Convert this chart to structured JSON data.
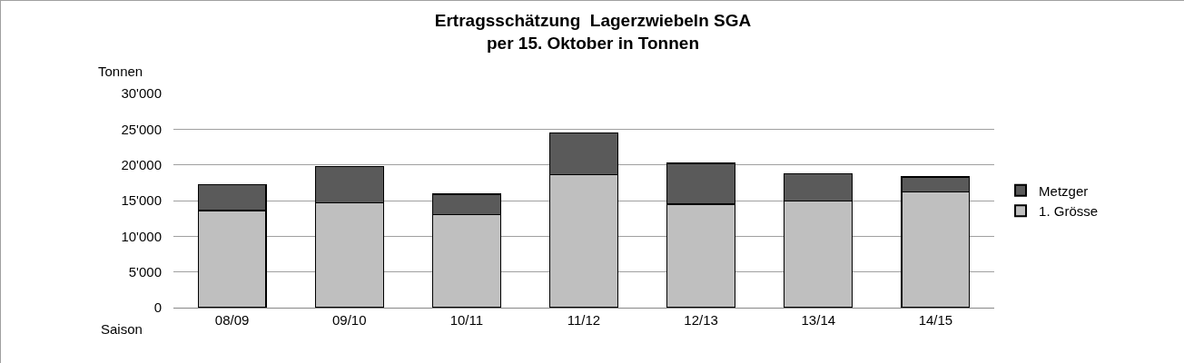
{
  "chart_data": {
    "type": "bar",
    "title": "Ertragsschätzung  Lagerzwiebeln SGA\nper 15. Oktober in Tonnen",
    "xlabel": "Saison",
    "ylabel": "Tonnen",
    "categories": [
      "08/09",
      "09/10",
      "10/11",
      "11/12",
      "12/13",
      "13/14",
      "14/15"
    ],
    "series": [
      {
        "name": "1. Grösse",
        "color": "#bfbfbf",
        "values": [
          13600,
          14700,
          13000,
          18600,
          14500,
          14900,
          16200
        ]
      },
      {
        "name": "Metzger",
        "color": "#5a5a5a",
        "values": [
          3600,
          5100,
          2900,
          5900,
          5700,
          3900,
          2100
        ]
      }
    ],
    "stacked": true,
    "ylim": [
      0,
      30000
    ],
    "yticks": [
      {
        "value": 0,
        "label": "0"
      },
      {
        "value": 5000,
        "label": "5'000"
      },
      {
        "value": 10000,
        "label": "10'000"
      },
      {
        "value": 15000,
        "label": "15'000"
      },
      {
        "value": 20000,
        "label": "20'000"
      },
      {
        "value": 25000,
        "label": "25'000"
      },
      {
        "value": 30000,
        "label": "30'000"
      }
    ],
    "grid": "y",
    "legend": "right"
  }
}
